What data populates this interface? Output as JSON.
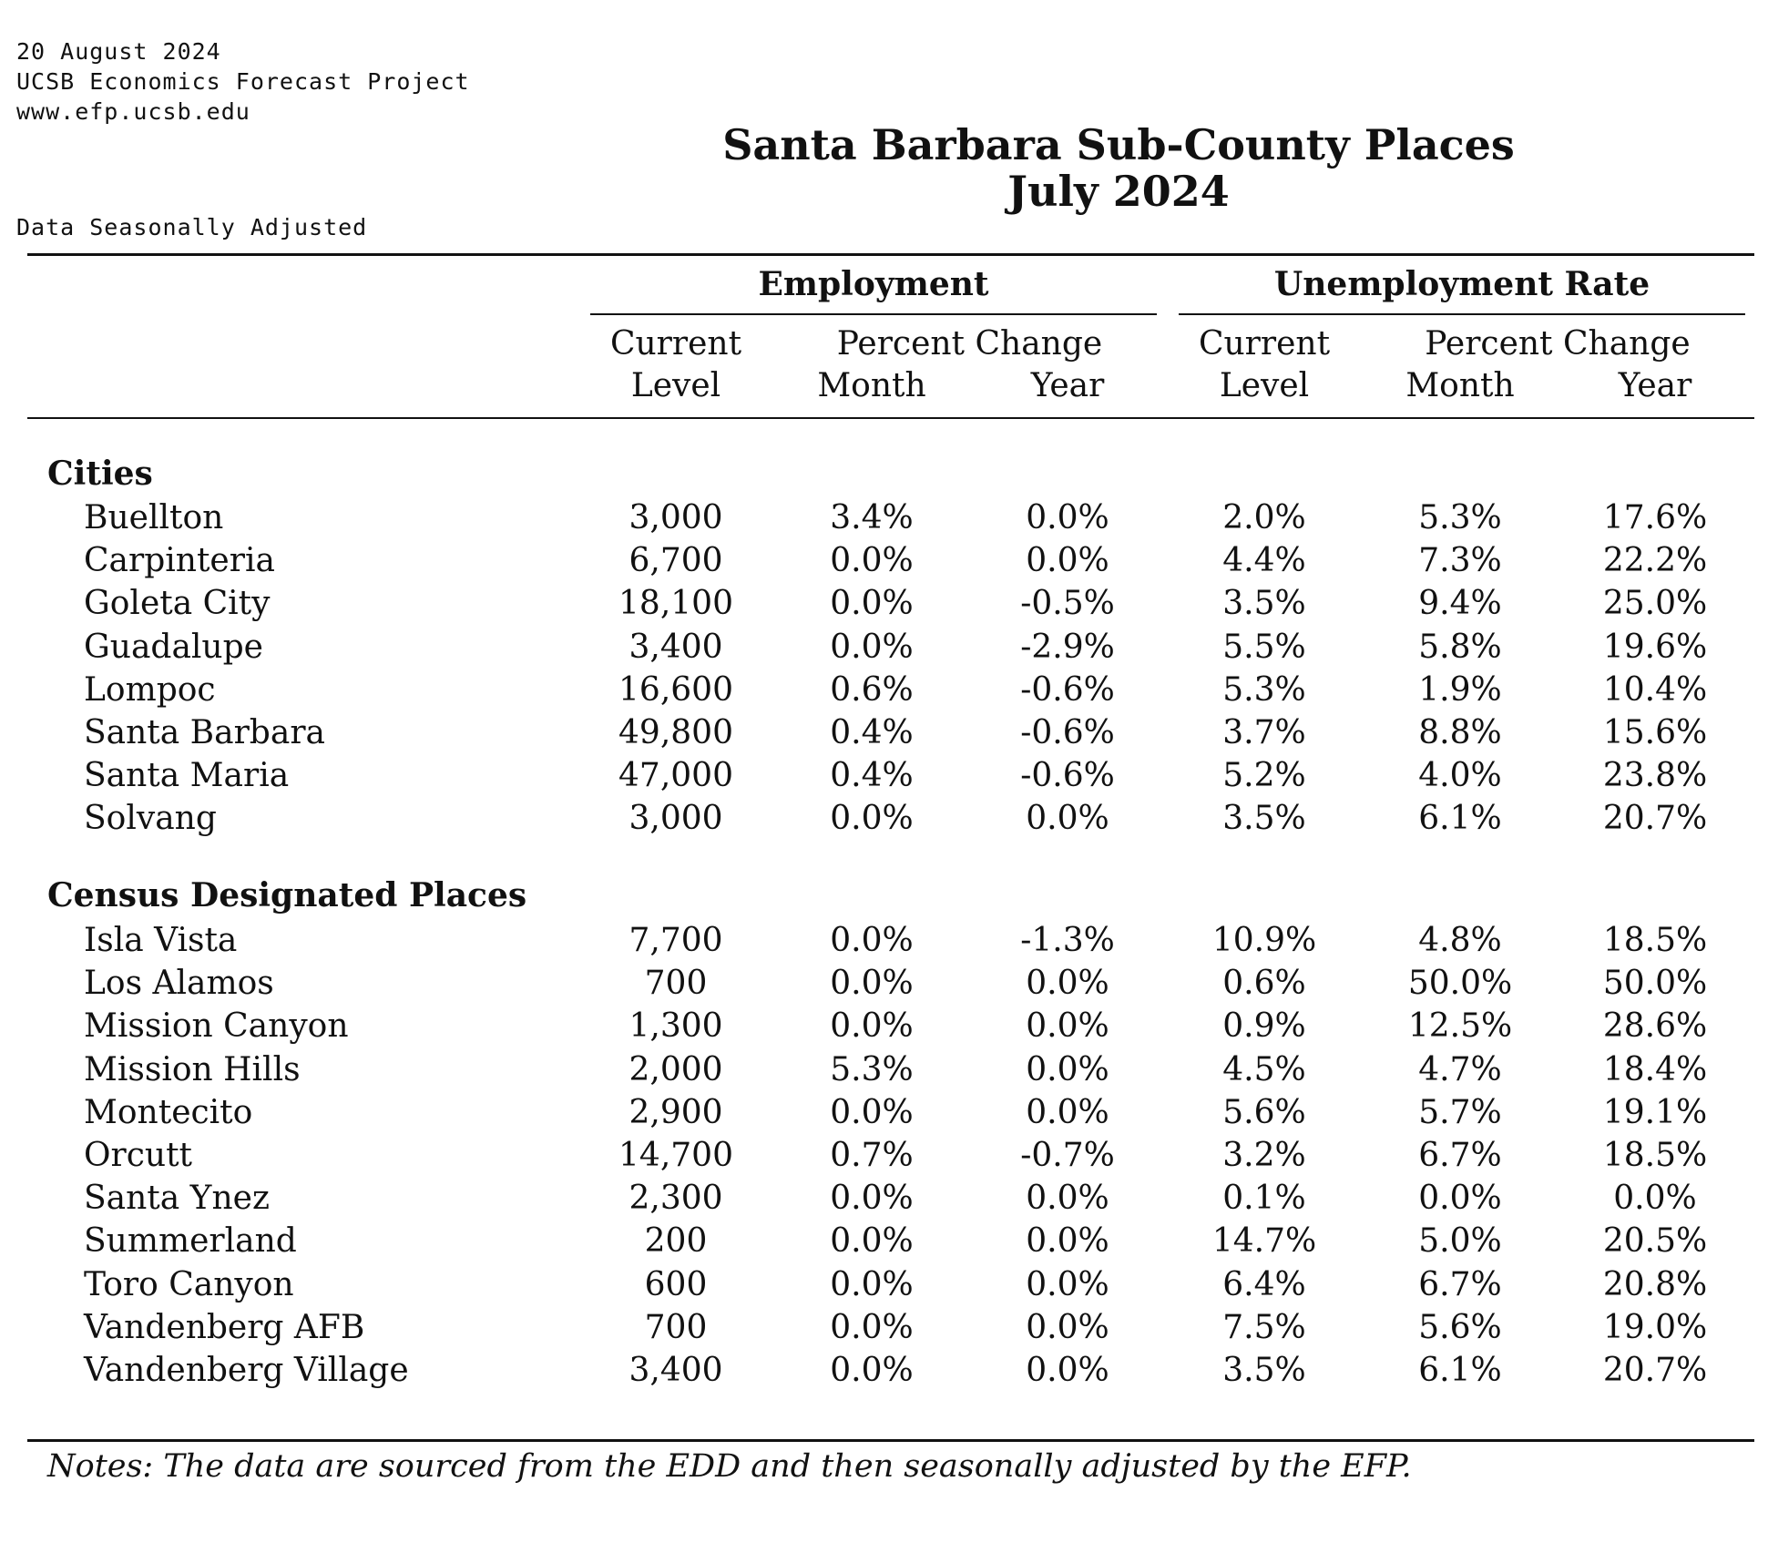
{
  "meta": {
    "date": "20 August 2024",
    "org": "UCSB Economics Forecast Project",
    "url": "www.efp.ucsb.edu",
    "seasonal_note": "Data Seasonally Adjusted"
  },
  "title": {
    "line1": "Santa Barbara Sub-County Places",
    "line2": "July 2024"
  },
  "header": {
    "employment": "Employment",
    "unemployment": "Unemployment Rate",
    "current": "Current",
    "level": "Level",
    "percent_change": "Percent Change",
    "month": "Month",
    "year": "Year"
  },
  "sections": {
    "cities": "Cities",
    "cdp": "Census Designated Places"
  },
  "cities": [
    {
      "name": "Buellton",
      "emp_level": "3,000",
      "emp_month": "3.4%",
      "emp_year": "0.0%",
      "ur_level": "2.0%",
      "ur_month": "5.3%",
      "ur_year": "17.6%"
    },
    {
      "name": "Carpinteria",
      "emp_level": "6,700",
      "emp_month": "0.0%",
      "emp_year": "0.0%",
      "ur_level": "4.4%",
      "ur_month": "7.3%",
      "ur_year": "22.2%"
    },
    {
      "name": "Goleta City",
      "emp_level": "18,100",
      "emp_month": "0.0%",
      "emp_year": "-0.5%",
      "ur_level": "3.5%",
      "ur_month": "9.4%",
      "ur_year": "25.0%"
    },
    {
      "name": "Guadalupe",
      "emp_level": "3,400",
      "emp_month": "0.0%",
      "emp_year": "-2.9%",
      "ur_level": "5.5%",
      "ur_month": "5.8%",
      "ur_year": "19.6%"
    },
    {
      "name": "Lompoc",
      "emp_level": "16,600",
      "emp_month": "0.6%",
      "emp_year": "-0.6%",
      "ur_level": "5.3%",
      "ur_month": "1.9%",
      "ur_year": "10.4%"
    },
    {
      "name": "Santa Barbara",
      "emp_level": "49,800",
      "emp_month": "0.4%",
      "emp_year": "-0.6%",
      "ur_level": "3.7%",
      "ur_month": "8.8%",
      "ur_year": "15.6%"
    },
    {
      "name": "Santa Maria",
      "emp_level": "47,000",
      "emp_month": "0.4%",
      "emp_year": "-0.6%",
      "ur_level": "5.2%",
      "ur_month": "4.0%",
      "ur_year": "23.8%"
    },
    {
      "name": "Solvang",
      "emp_level": "3,000",
      "emp_month": "0.0%",
      "emp_year": "0.0%",
      "ur_level": "3.5%",
      "ur_month": "6.1%",
      "ur_year": "20.7%"
    }
  ],
  "cdp": [
    {
      "name": "Isla Vista",
      "emp_level": "7,700",
      "emp_month": "0.0%",
      "emp_year": "-1.3%",
      "ur_level": "10.9%",
      "ur_month": "4.8%",
      "ur_year": "18.5%"
    },
    {
      "name": "Los Alamos",
      "emp_level": "700",
      "emp_month": "0.0%",
      "emp_year": "0.0%",
      "ur_level": "0.6%",
      "ur_month": "50.0%",
      "ur_year": "50.0%"
    },
    {
      "name": "Mission Canyon",
      "emp_level": "1,300",
      "emp_month": "0.0%",
      "emp_year": "0.0%",
      "ur_level": "0.9%",
      "ur_month": "12.5%",
      "ur_year": "28.6%"
    },
    {
      "name": "Mission Hills",
      "emp_level": "2,000",
      "emp_month": "5.3%",
      "emp_year": "0.0%",
      "ur_level": "4.5%",
      "ur_month": "4.7%",
      "ur_year": "18.4%"
    },
    {
      "name": "Montecito",
      "emp_level": "2,900",
      "emp_month": "0.0%",
      "emp_year": "0.0%",
      "ur_level": "5.6%",
      "ur_month": "5.7%",
      "ur_year": "19.1%"
    },
    {
      "name": "Orcutt",
      "emp_level": "14,700",
      "emp_month": "0.7%",
      "emp_year": "-0.7%",
      "ur_level": "3.2%",
      "ur_month": "6.7%",
      "ur_year": "18.5%"
    },
    {
      "name": "Santa Ynez",
      "emp_level": "2,300",
      "emp_month": "0.0%",
      "emp_year": "0.0%",
      "ur_level": "0.1%",
      "ur_month": "0.0%",
      "ur_year": "0.0%"
    },
    {
      "name": "Summerland",
      "emp_level": "200",
      "emp_month": "0.0%",
      "emp_year": "0.0%",
      "ur_level": "14.7%",
      "ur_month": "5.0%",
      "ur_year": "20.5%"
    },
    {
      "name": "Toro Canyon",
      "emp_level": "600",
      "emp_month": "0.0%",
      "emp_year": "0.0%",
      "ur_level": "6.4%",
      "ur_month": "6.7%",
      "ur_year": "20.8%"
    },
    {
      "name": "Vandenberg AFB",
      "emp_level": "700",
      "emp_month": "0.0%",
      "emp_year": "0.0%",
      "ur_level": "7.5%",
      "ur_month": "5.6%",
      "ur_year": "19.0%"
    },
    {
      "name": "Vandenberg Village",
      "emp_level": "3,400",
      "emp_month": "0.0%",
      "emp_year": "0.0%",
      "ur_level": "3.5%",
      "ur_month": "6.1%",
      "ur_year": "20.7%"
    }
  ],
  "notes": "Notes: The data are sourced from the EDD and then seasonally adjusted by the EFP."
}
